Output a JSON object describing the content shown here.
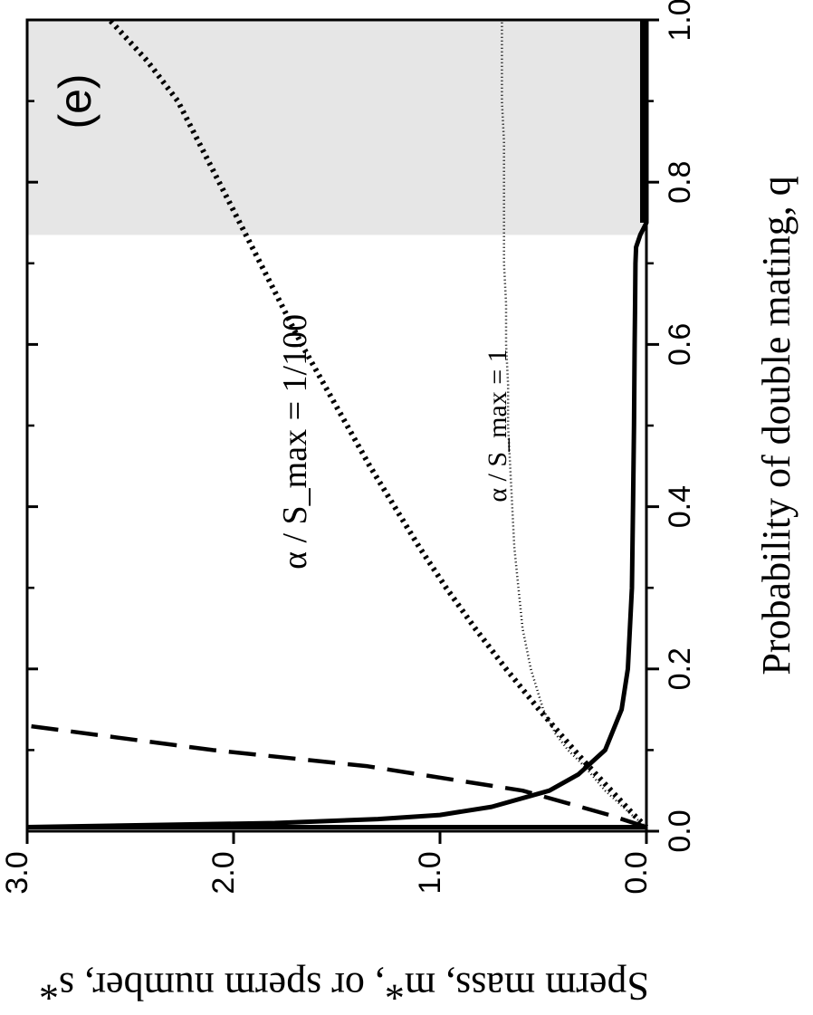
{
  "chart_data": {
    "type": "line",
    "panel_label": "(e)",
    "xlabel": "Probability of double mating, q",
    "ylabel": "Sperm mass, m*, or sperm number, s*",
    "xlim": [
      0.0,
      1.0
    ],
    "ylim": [
      0.0,
      3.0
    ],
    "x_ticks": [
      "0.0",
      "0.2",
      "0.4",
      "0.6",
      "0.8",
      "1.0"
    ],
    "y_ticks": [
      "0.0",
      "1.0",
      "2.0",
      "3.0"
    ],
    "shaded_region": {
      "from": 0.735,
      "to": 1.0
    },
    "grid": false,
    "orientation": "rotated 90 degrees clockwise",
    "series": [
      {
        "label": "α / S_max = 1/100",
        "style": "thick-dotted",
        "x": [
          0.005,
          0.02,
          0.05,
          0.08,
          0.1,
          0.15,
          0.2,
          0.25,
          0.3,
          0.35,
          0.4,
          0.45,
          0.5,
          0.55,
          0.6,
          0.65,
          0.7,
          0.75,
          0.8,
          0.85,
          0.9,
          0.95,
          1.0
        ],
        "y": [
          0.0,
          0.06,
          0.17,
          0.28,
          0.35,
          0.52,
          0.68,
          0.83,
          0.97,
          1.1,
          1.22,
          1.34,
          1.45,
          1.56,
          1.67,
          1.77,
          1.87,
          1.97,
          2.07,
          2.17,
          2.27,
          2.42,
          2.6
        ]
      },
      {
        "label": "α / S_max = 1",
        "style": "thin-dotted",
        "x": [
          0.005,
          0.02,
          0.05,
          0.08,
          0.1,
          0.12,
          0.15,
          0.2,
          0.25,
          0.3,
          0.35,
          0.4,
          0.45,
          0.5,
          0.55,
          0.6,
          0.65,
          0.7,
          0.75,
          0.8,
          0.85,
          0.9,
          0.95,
          1.0
        ],
        "y": [
          0.0,
          0.07,
          0.2,
          0.3,
          0.38,
          0.44,
          0.5,
          0.56,
          0.6,
          0.62,
          0.64,
          0.65,
          0.66,
          0.67,
          0.67,
          0.68,
          0.68,
          0.69,
          0.69,
          0.69,
          0.69,
          0.7,
          0.7,
          0.7
        ]
      },
      {
        "label": "",
        "style": "dashed",
        "x": [
          0.005,
          0.02,
          0.05,
          0.08,
          0.1,
          0.13
        ],
        "y": [
          0.0,
          0.18,
          0.6,
          1.35,
          2.1,
          3.0
        ]
      },
      {
        "label": "",
        "style": "solid",
        "x": [
          0.005,
          0.01,
          0.015,
          0.02,
          0.03,
          0.05,
          0.07,
          0.1,
          0.15,
          0.2,
          0.3,
          0.4,
          0.5,
          0.6,
          0.65,
          0.7,
          0.72,
          0.735,
          0.75,
          0.8,
          0.9,
          1.0
        ],
        "y": [
          3.0,
          1.8,
          1.3,
          1.0,
          0.75,
          0.47,
          0.33,
          0.2,
          0.12,
          0.09,
          0.07,
          0.065,
          0.06,
          0.057,
          0.055,
          0.053,
          0.05,
          0.03,
          0.0,
          0.0,
          0.0,
          0.0
        ]
      }
    ],
    "annotations": [
      {
        "text": "α / S_max = 1/100",
        "x": 0.48,
        "y": 1.65
      },
      {
        "text": "α / S_max = 1",
        "x": 0.5,
        "y": 0.68
      }
    ]
  }
}
